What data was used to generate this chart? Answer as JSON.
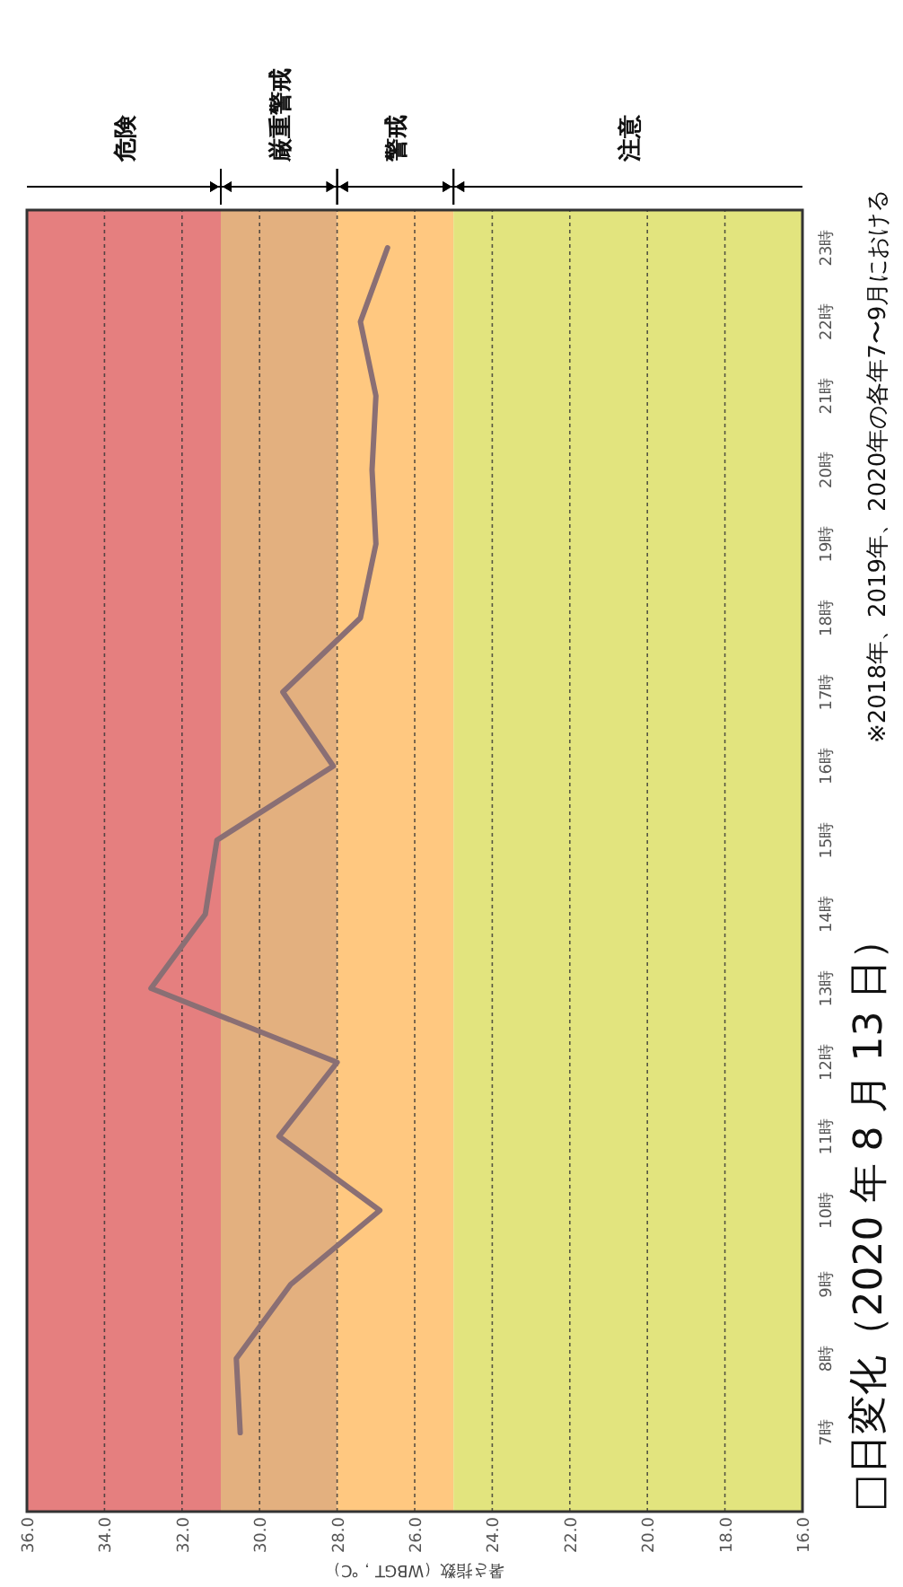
{
  "chart_data": {
    "type": "line",
    "orientation": "horizontal",
    "title": "□日変化（2020 年 8 月 13 日）",
    "annotations": [
      "※2018年、2019年、2020年の各年7〜9月における"
    ],
    "xlabel": "暑さ指数（WBGT，℃）",
    "categories": [
      "23時",
      "22時",
      "21時",
      "20時",
      "19時",
      "18時",
      "17時",
      "16時",
      "15時",
      "14時",
      "13時",
      "12時",
      "11時",
      "10時",
      "9時",
      "8時",
      "7時"
    ],
    "series": [
      {
        "color": "#8a6f74",
        "values": [
          26.7,
          27.4,
          27.0,
          27.1,
          27.0,
          27.4,
          29.4,
          28.1,
          31.1,
          31.4,
          32.8,
          28.0,
          29.5,
          26.9,
          29.2,
          30.6,
          30.5
        ]
      }
    ],
    "xlim": [
      36,
      16
    ],
    "xticks": [
      {
        "value": 36,
        "label": "36.0"
      },
      {
        "value": 34,
        "label": "34.0"
      },
      {
        "value": 32,
        "label": "32.0"
      },
      {
        "value": 30,
        "label": "30.0"
      },
      {
        "value": 28,
        "label": "28.0"
      },
      {
        "value": 26,
        "label": "26.0"
      },
      {
        "value": 24,
        "label": "24.0"
      },
      {
        "value": 22,
        "label": "22.0"
      },
      {
        "value": 20,
        "label": "20.0"
      },
      {
        "value": 18,
        "label": "18.0"
      },
      {
        "value": 16,
        "label": "16.0"
      }
    ],
    "grid": "x",
    "bands": [
      {
        "axis": "x",
        "from": 31,
        "to": 36,
        "label": "危険",
        "color": "#e57f7f"
      },
      {
        "axis": "x",
        "from": 28,
        "to": 31,
        "label": "厳重警戒",
        "color": "#e3b07f"
      },
      {
        "axis": "x",
        "from": 25,
        "to": 28,
        "label": "警戒",
        "color": "#ffc880"
      },
      {
        "axis": "x",
        "from": 16,
        "to": 25,
        "label": "注意",
        "color": "#e2e47e"
      }
    ]
  }
}
